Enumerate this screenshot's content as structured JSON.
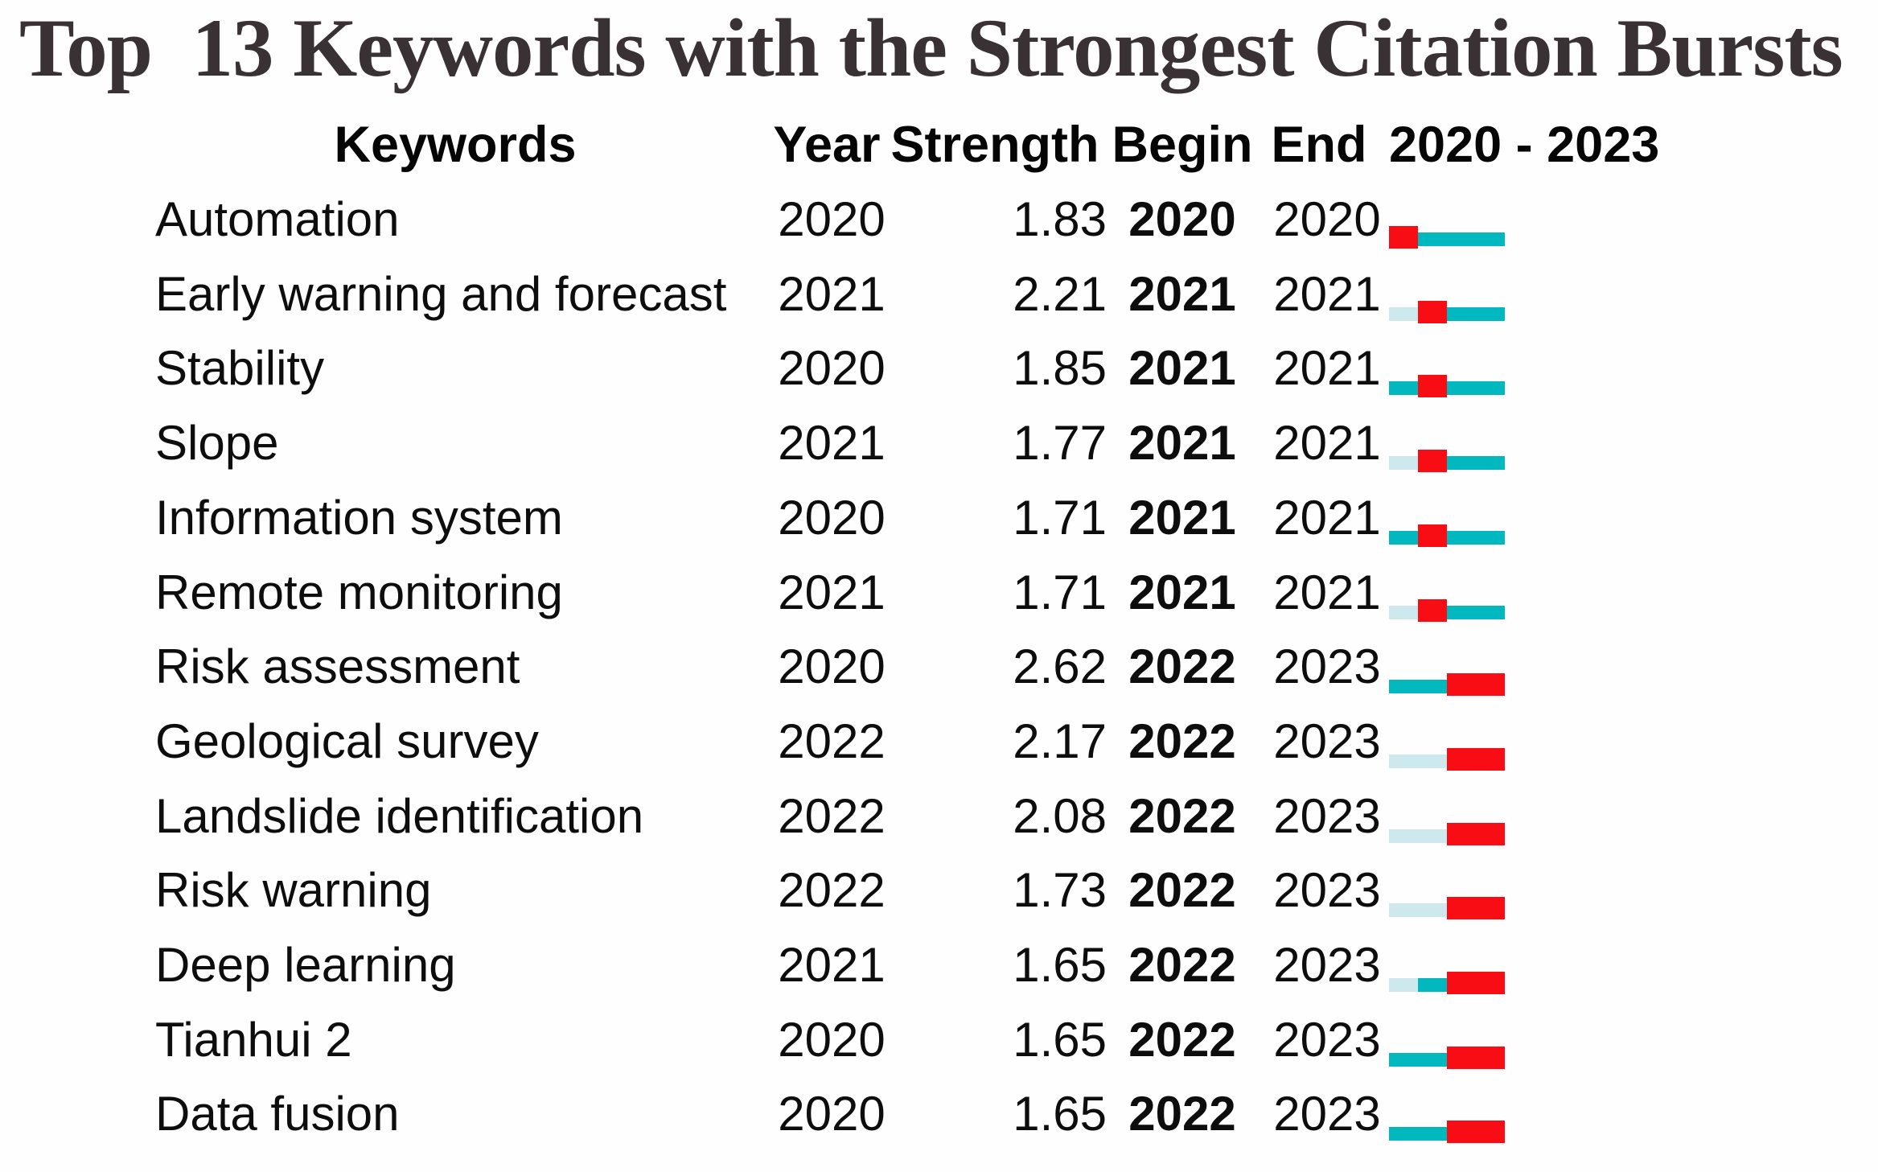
{
  "title": "Top  13 Keywords with the Strongest Citation Bursts",
  "header": {
    "keywords": "Keywords",
    "year": "Year",
    "strength": "Strength",
    "begin": "Begin",
    "end": "End",
    "range": "2020 - 2023"
  },
  "colors": {
    "burst_red": "#f80d15",
    "active_teal": "#00b8be",
    "pre_appearance_light": "#cde9ed",
    "title_text": "#3a3134",
    "body_text": "#0d0d0d"
  },
  "chart_data": {
    "type": "table",
    "title": "Top 13 Keywords with the Strongest Citation Bursts",
    "timeline_years": [
      2020,
      2021,
      2022,
      2023
    ],
    "legend": {
      "burst": "red segment = citation burst period",
      "active": "teal segment = year within study range after keyword appeared",
      "pre": "light blue segment = year before keyword appeared"
    },
    "rows": [
      {
        "keyword": "Automation",
        "year": "2020",
        "strength": "1.83",
        "begin": "2020",
        "end": "2020",
        "timeline": [
          "burst",
          "active",
          "active",
          "active"
        ]
      },
      {
        "keyword": "Early warning and forecast",
        "year": "2021",
        "strength": "2.21",
        "begin": "2021",
        "end": "2021",
        "timeline": [
          "pre",
          "burst",
          "active",
          "active"
        ]
      },
      {
        "keyword": "Stability",
        "year": "2020",
        "strength": "1.85",
        "begin": "2021",
        "end": "2021",
        "timeline": [
          "active",
          "burst",
          "active",
          "active"
        ]
      },
      {
        "keyword": "Slope",
        "year": "2021",
        "strength": "1.77",
        "begin": "2021",
        "end": "2021",
        "timeline": [
          "pre",
          "burst",
          "active",
          "active"
        ]
      },
      {
        "keyword": "Information system",
        "year": "2020",
        "strength": "1.71",
        "begin": "2021",
        "end": "2021",
        "timeline": [
          "active",
          "burst",
          "active",
          "active"
        ]
      },
      {
        "keyword": "Remote monitoring",
        "year": "2021",
        "strength": "1.71",
        "begin": "2021",
        "end": "2021",
        "timeline": [
          "pre",
          "burst",
          "active",
          "active"
        ]
      },
      {
        "keyword": "Risk assessment",
        "year": "2020",
        "strength": "2.62",
        "begin": "2022",
        "end": "2023",
        "timeline": [
          "active",
          "active",
          "burst",
          "burst"
        ]
      },
      {
        "keyword": "Geological survey",
        "year": "2022",
        "strength": "2.17",
        "begin": "2022",
        "end": "2023",
        "timeline": [
          "pre",
          "pre",
          "burst",
          "burst"
        ]
      },
      {
        "keyword": "Landslide identification",
        "year": "2022",
        "strength": "2.08",
        "begin": "2022",
        "end": "2023",
        "timeline": [
          "pre",
          "pre",
          "burst",
          "burst"
        ]
      },
      {
        "keyword": "Risk warning",
        "year": "2022",
        "strength": "1.73",
        "begin": "2022",
        "end": "2023",
        "timeline": [
          "pre",
          "pre",
          "burst",
          "burst"
        ]
      },
      {
        "keyword": "Deep learning",
        "year": "2021",
        "strength": "1.65",
        "begin": "2022",
        "end": "2023",
        "timeline": [
          "pre",
          "active",
          "burst",
          "burst"
        ]
      },
      {
        "keyword": "Tianhui 2",
        "year": "2020",
        "strength": "1.65",
        "begin": "2022",
        "end": "2023",
        "timeline": [
          "active",
          "active",
          "burst",
          "burst"
        ]
      },
      {
        "keyword": "Data fusion",
        "year": "2020",
        "strength": "1.65",
        "begin": "2022",
        "end": "2023",
        "timeline": [
          "active",
          "active",
          "burst",
          "burst"
        ]
      }
    ]
  }
}
